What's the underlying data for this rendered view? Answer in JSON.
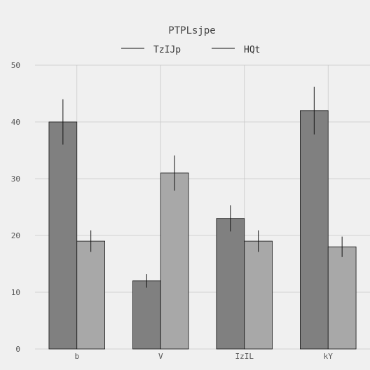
{
  "chart_data": {
    "type": "bar",
    "title": "PTPLsjpe",
    "xlabel": "",
    "ylabel": "",
    "categories": [
      "b",
      "V",
      "IzIL",
      "kY"
    ],
    "series": [
      {
        "name": "TzIJp",
        "values": [
          40,
          12,
          23,
          42
        ],
        "errors": [
          4.0,
          1.2,
          2.3,
          4.2
        ],
        "color": "#808080"
      },
      {
        "name": "HQt",
        "values": [
          19,
          31,
          19,
          18
        ],
        "errors": [
          1.9,
          3.1,
          1.9,
          1.8
        ],
        "color": "#a8a8a8"
      }
    ],
    "ylim": [
      0,
      50
    ],
    "yticks": [
      0,
      10,
      20,
      30,
      40,
      50
    ],
    "grid": true,
    "legend_position": "top-center",
    "background": "#f0f0f0",
    "gridColor": "#c8c8c8"
  }
}
